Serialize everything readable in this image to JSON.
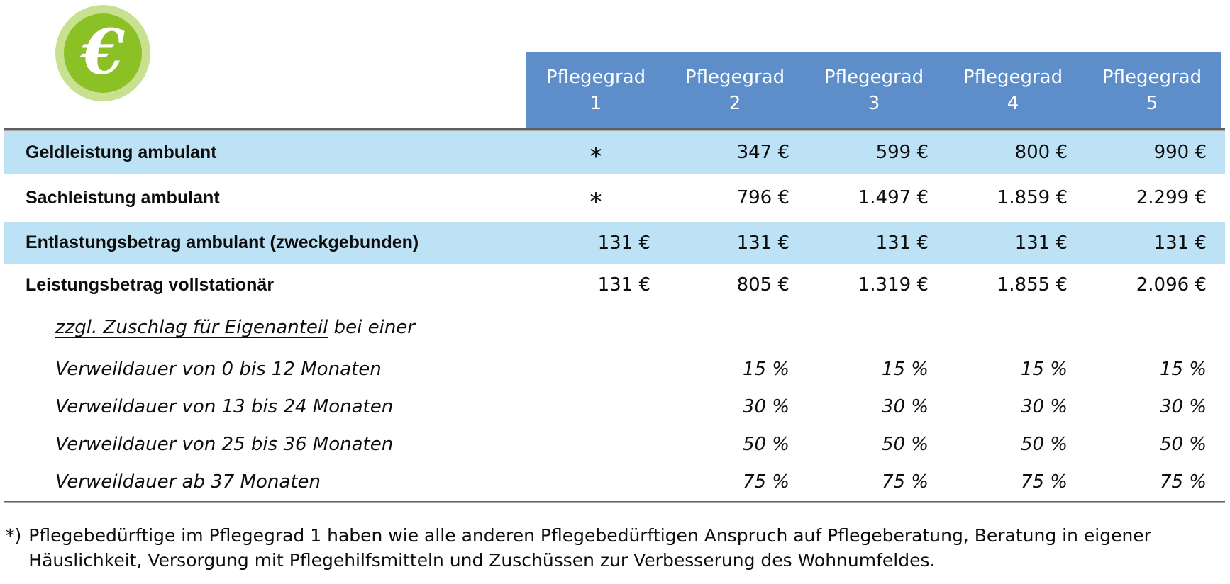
{
  "icon": {
    "glyph": "€",
    "outer_color": "#c7e190",
    "inner_color": "#8bc125",
    "glyph_color": "#ffffff"
  },
  "colors": {
    "header_bg": "#5e8ec9",
    "header_text": "#ffffff",
    "row_highlight": "#bee2f5",
    "divider": "#5f5f5f",
    "body_text": "#0d0d0d"
  },
  "header": {
    "columns": [
      {
        "label": "Pflegegrad",
        "number": "1"
      },
      {
        "label": "Pflegegrad",
        "number": "2"
      },
      {
        "label": "Pflegegrad",
        "number": "3"
      },
      {
        "label": "Pflegegrad",
        "number": "4"
      },
      {
        "label": "Pflegegrad",
        "number": "5"
      }
    ]
  },
  "table": {
    "rows": [
      {
        "label": "Geldleistung ambulant",
        "values": [
          "*",
          "347 €",
          "599 €",
          "800 €",
          "990 €"
        ]
      },
      {
        "label": "Sachleistung ambulant",
        "values": [
          "*",
          "796 €",
          "1.497 €",
          "1.859 €",
          "2.299 €"
        ]
      },
      {
        "label": "Entlastungsbetrag ambulant (zweckgebunden)",
        "values": [
          "131 €",
          "131 €",
          "131 €",
          "131 €",
          "131 €"
        ]
      },
      {
        "label": "Leistungsbetrag vollstationär",
        "values": [
          "131 €",
          "805 €",
          "1.319 €",
          "1.855 €",
          "2.096 €"
        ]
      }
    ],
    "surcharge_header": {
      "underlined": "zzgl. Zuschlag für Eigenanteil",
      "rest": " bei einer"
    },
    "surcharge_rows": [
      {
        "label": "Verweildauer von 0 bis 12 Monaten",
        "values": [
          "15 %",
          "15 %",
          "15 %",
          "15 %"
        ]
      },
      {
        "label": "Verweildauer von 13 bis 24 Monaten",
        "values": [
          "30 %",
          "30 %",
          "30 %",
          "30 %"
        ]
      },
      {
        "label": "Verweildauer von 25 bis 36 Monaten",
        "values": [
          "50 %",
          "50 %",
          "50 %",
          "50 %"
        ]
      },
      {
        "label": "Verweildauer ab 37 Monaten",
        "values": [
          "75 %",
          "75 %",
          "75 %",
          "75 %"
        ]
      }
    ]
  },
  "footnote": {
    "marker": "*)",
    "line1": "Pflegebedürftige im Pflegegrad 1 haben wie alle anderen Pflegebedürftigen Anspruch auf Pflegeberatung, Beratung in eigener",
    "line2": "Häuslichkeit, Versorgung mit Pflegehilfsmitteln und Zuschüssen zur Verbesserung des Wohnumfeldes."
  }
}
